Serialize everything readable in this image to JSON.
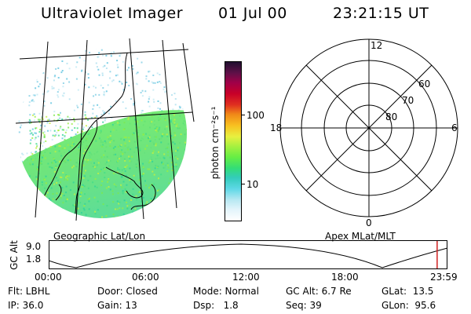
{
  "header": {
    "instrument": "Ultraviolet Imager",
    "date": "01 Jul 00",
    "time": "23:21:15 UT"
  },
  "image_panel": {
    "label": "Geographic Lat/Lon"
  },
  "colorbar": {
    "label": "photon cm⁻²s⁻¹",
    "ticks": [
      "100",
      "10"
    ],
    "scale": "log",
    "colors": [
      "#ffffff",
      "#e3f4fb",
      "#b8e8f2",
      "#5fd8e6",
      "#33ccbb",
      "#33dd77",
      "#66ee44",
      "#a8f040",
      "#e8f040",
      "#f8c020",
      "#f08818",
      "#e03020",
      "#c80028",
      "#a00048",
      "#601048",
      "#201030"
    ]
  },
  "polar_plot": {
    "label": "Apex MLat/MLT",
    "mlt_labels": {
      "top": "12",
      "left": "18",
      "right": "6",
      "bottom": "0"
    },
    "lat_labels": [
      "60",
      "70",
      "80"
    ]
  },
  "timeline": {
    "ylabel": "GC Alt",
    "ymax": "9.0",
    "ymin": "1.8",
    "ticks": [
      "00:00",
      "06:00",
      "12:00",
      "18:00",
      "23:59"
    ],
    "current_time_fraction": 0.976
  },
  "footer": {
    "filter": "Flt: LBHL",
    "ip": "IP: 36.0",
    "door": "Door: Closed",
    "gain": "Gain: 13",
    "mode": "Mode: Normal",
    "dsp": "Dsp:   1.8",
    "gc_alt": "GC Alt: 6.7 Re",
    "seq": "Seq: 39",
    "glat": "GLat:  13.5",
    "glon": "GLon:  95.6"
  }
}
